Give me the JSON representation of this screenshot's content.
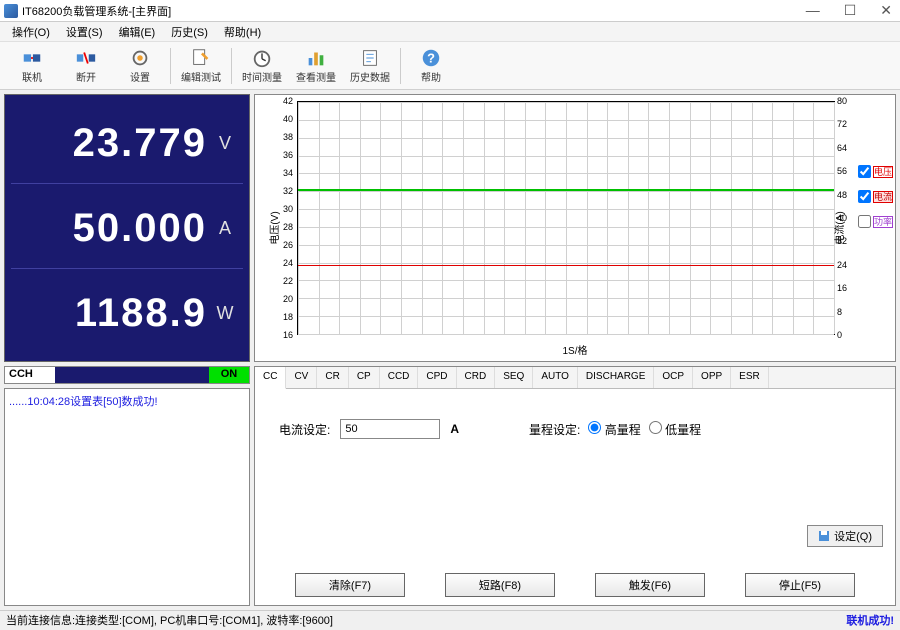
{
  "window": {
    "title": "IT68200负载管理系统-[主界面]",
    "min": "—",
    "max": "☐",
    "close": "✕"
  },
  "menu": {
    "items": [
      "操作(O)",
      "设置(S)",
      "编辑(E)",
      "历史(S)",
      "帮助(H)"
    ]
  },
  "toolbar": {
    "btns": [
      {
        "label": "联机",
        "icon": "connect"
      },
      {
        "label": "断开",
        "icon": "disconnect"
      },
      {
        "label": "设置",
        "icon": "settings"
      },
      {
        "label": "编辑测试",
        "icon": "edit"
      },
      {
        "label": "时间测量",
        "icon": "clock"
      },
      {
        "label": "查看测量",
        "icon": "chart"
      },
      {
        "label": "历史数据",
        "icon": "history"
      },
      {
        "label": "帮助",
        "icon": "help"
      }
    ]
  },
  "display": {
    "voltage": {
      "value": "23.779",
      "unit": "V"
    },
    "current": {
      "value": "50.000",
      "unit": "A"
    },
    "power": {
      "value": "1188.9",
      "unit": "W"
    },
    "mode": "CCH",
    "state": "ON",
    "bg_color": "#1a1a6e"
  },
  "log": {
    "line": "......10:04:28设置表[50]数成功!"
  },
  "chart": {
    "xlim": [
      0,
      26
    ],
    "xstep": 1,
    "y_left": {
      "label": "电压(V)",
      "min": 16,
      "max": 42,
      "step": 2,
      "ticks": [
        16,
        18,
        20,
        22,
        24,
        26,
        28,
        30,
        32,
        34,
        36,
        38,
        40,
        42
      ]
    },
    "y_right": {
      "label": "电流(A)",
      "min": 0,
      "max": 80,
      "step": 8,
      "ticks": [
        0,
        8,
        16,
        24,
        32,
        40,
        48,
        56,
        64,
        72,
        80
      ]
    },
    "xlabel": "1S/格",
    "trace_voltage_y": 23.779,
    "trace_current_y": 50.0,
    "colors": {
      "voltage": "#e00000",
      "current": "#00c000",
      "power": "#a040d0",
      "grid": "#d0d0d0"
    },
    "legend": [
      {
        "label": "电压",
        "color": "#e00000",
        "checked": true
      },
      {
        "label": "电流",
        "color": "#00c000",
        "checked": true
      },
      {
        "label": "功率",
        "color": "#a040d0",
        "checked": false
      }
    ]
  },
  "tabs": {
    "items": [
      "CC",
      "CV",
      "CR",
      "CP",
      "CCD",
      "CPD",
      "CRD",
      "SEQ",
      "AUTO",
      "DISCHARGE",
      "OCP",
      "OPP",
      "ESR"
    ],
    "active": 0
  },
  "cc_panel": {
    "current_label": "电流设定:",
    "current_value": "50",
    "current_unit": "A",
    "range_label": "量程设定:",
    "range_high": "高量程",
    "range_low": "低量程",
    "range_selected": "high",
    "set_btn": "设定(Q)"
  },
  "fbuttons": {
    "clear": "清除(F7)",
    "short": "短路(F8)",
    "trig": "触发(F6)",
    "stop": "停止(F5)"
  },
  "statusbar": {
    "left": "当前连接信息:连接类型:[COM], PC机串口号:[COM1], 波特率:[9600]",
    "right": "联机成功!"
  }
}
